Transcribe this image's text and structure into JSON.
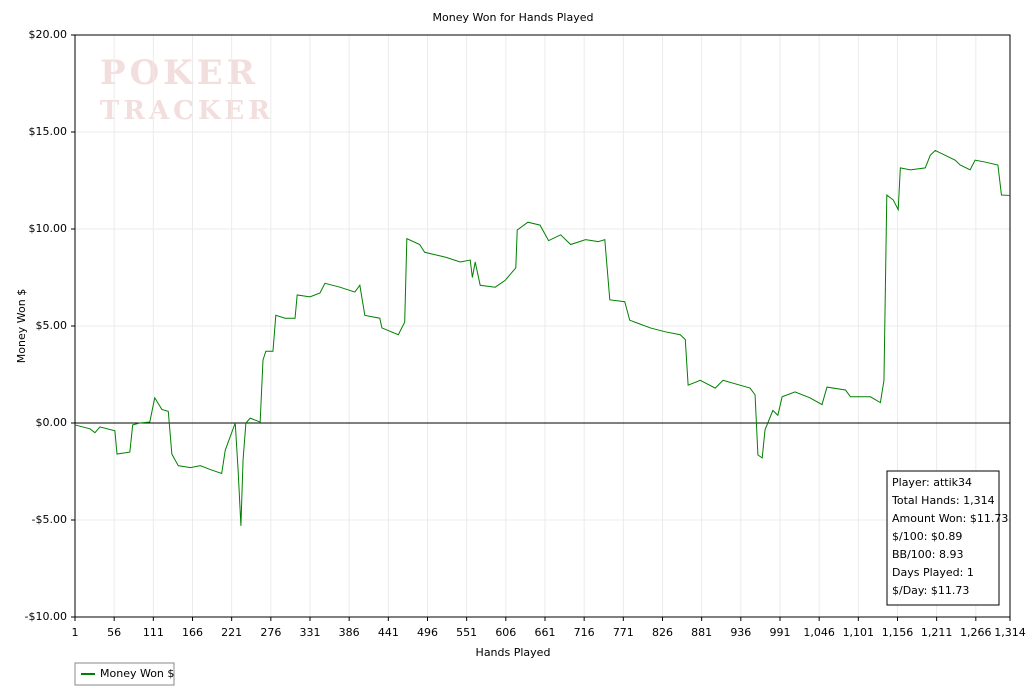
{
  "chart_data": {
    "type": "line",
    "title": "Money Won for Hands Played",
    "watermark": [
      "POKER",
      "TRACKER"
    ],
    "xlabel": "Hands Played",
    "ylabel": "Money Won $",
    "xlim": [
      1,
      1314
    ],
    "ylim": [
      -10,
      20
    ],
    "xticks": [
      1,
      56,
      111,
      166,
      221,
      276,
      331,
      386,
      441,
      496,
      551,
      606,
      661,
      716,
      771,
      826,
      881,
      936,
      991,
      {
        "value": 1046,
        "label": "1,046"
      },
      {
        "value": 1101,
        "label": "1,101"
      },
      {
        "value": 1156,
        "label": "1,156"
      },
      {
        "value": 1211,
        "label": "1,211"
      },
      {
        "value": 1266,
        "label": "1,266"
      },
      {
        "value": 1314,
        "label": "1,314"
      }
    ],
    "yticks": [
      {
        "value": -10,
        "label": "-$10.00"
      },
      {
        "value": -5,
        "label": "-$5.00"
      },
      {
        "value": 0,
        "label": "$0.00"
      },
      {
        "value": 5,
        "label": "$5.00"
      },
      {
        "value": 10,
        "label": "$10.00"
      },
      {
        "value": 15,
        "label": "$15.00"
      },
      {
        "value": 20,
        "label": "$20.00"
      }
    ],
    "grid": true,
    "legend": "bottom-left",
    "annotations": [
      "Player: attik34",
      "Total Hands: 1,314",
      "Amount Won: $11.73",
      "$/100: $0.89",
      "BB/100: 8.93",
      "Days Played: 1",
      "$/Day: $11.73"
    ],
    "x": [
      1,
      22,
      29,
      36,
      57,
      60,
      78,
      82,
      92,
      106,
      113,
      123,
      132,
      137,
      146,
      163,
      177,
      191,
      207,
      212,
      226,
      230,
      234,
      237,
      241,
      247,
      261,
      265,
      269,
      279,
      283,
      296,
      310,
      313,
      331,
      345,
      352,
      373,
      394,
      401,
      408,
      429,
      432,
      455,
      464,
      467,
      485,
      492,
      521,
      542,
      556,
      559,
      563,
      570,
      591,
      605,
      620,
      622,
      637,
      654,
      666,
      683,
      697,
      718,
      736,
      745,
      752,
      773,
      780,
      809,
      830,
      851,
      858,
      862,
      879,
      900,
      911,
      935,
      949,
      956,
      960,
      966,
      970,
      981,
      988,
      994,
      1012,
      1033,
      1050,
      1057,
      1083,
      1090,
      1118,
      1132,
      1137,
      1141,
      1150,
      1157,
      1160,
      1174,
      1195,
      1202,
      1209,
      1223,
      1237,
      1244,
      1258,
      1265,
      1279,
      1297,
      1302,
      1314
    ],
    "series": [
      {
        "name": "Money Won $",
        "color": "#008000",
        "values": [
          -0.1,
          -0.3,
          -0.5,
          -0.2,
          -0.4,
          -1.6,
          -1.5,
          -0.1,
          0,
          0.05,
          1.3,
          0.7,
          0.6,
          -1.6,
          -2.2,
          -2.3,
          -2.2,
          -2.4,
          -2.6,
          -1.4,
          0,
          -2.4,
          -5.3,
          -1.9,
          0,
          0.25,
          0.05,
          3.25,
          3.7,
          3.7,
          5.55,
          5.4,
          5.4,
          6.6,
          6.5,
          6.7,
          7.2,
          7.0,
          6.75,
          7.1,
          5.55,
          5.4,
          4.9,
          4.55,
          5.2,
          9.5,
          9.2,
          8.8,
          8.55,
          8.3,
          8.4,
          7.5,
          8.3,
          7.1,
          7.0,
          7.35,
          8.0,
          9.95,
          10.35,
          10.2,
          9.4,
          9.7,
          9.2,
          9.45,
          9.35,
          9.45,
          6.35,
          6.25,
          5.3,
          4.9,
          4.7,
          4.55,
          4.3,
          1.95,
          2.2,
          1.8,
          2.2,
          1.95,
          1.8,
          1.45,
          -1.65,
          -1.8,
          -0.35,
          0.65,
          0.4,
          1.35,
          1.6,
          1.3,
          0.95,
          1.85,
          1.7,
          1.35,
          1.35,
          1.05,
          2.2,
          11.75,
          11.5,
          11.0,
          13.15,
          13.05,
          13.15,
          13.8,
          14.05,
          13.8,
          13.55,
          13.3,
          13.05,
          13.55,
          13.45,
          13.3,
          11.75,
          11.73
        ]
      }
    ]
  }
}
